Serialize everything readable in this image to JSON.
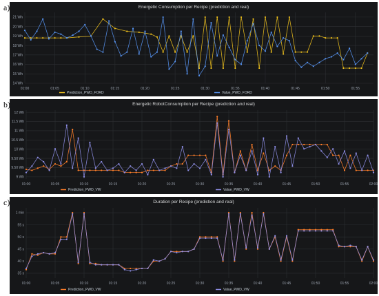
{
  "panel_labels": [
    "a)",
    "b)",
    "c)"
  ],
  "chart_data": [
    {
      "type": "line",
      "title": "Energetic Consumption per Recipe (prediction and real)",
      "xlabel": "",
      "ylabel": "",
      "x_ticks": [
        "01:00",
        "01:05",
        "01:10",
        "01:15",
        "01:20",
        "01:25",
        "01:30",
        "01:35",
        "01:40",
        "01:45",
        "01:50",
        "01:55"
      ],
      "y_ticks": [
        "14 Wh",
        "15 Wh",
        "16 Wh",
        "17 Wh",
        "18 Wh",
        "19 Wh",
        "20 Wh",
        "21 Wh"
      ],
      "ylim": [
        14,
        21.5
      ],
      "xlim_minutes": [
        0,
        58
      ],
      "grid": true,
      "legend_position": "bottom-left",
      "series": [
        {
          "name": "Prediction_PWD_FORD",
          "color": "#f2c31d",
          "x": [
            0,
            1,
            2,
            3,
            4,
            5,
            6,
            7,
            9,
            11,
            13,
            15,
            17,
            19,
            21,
            22,
            23,
            24,
            25,
            26,
            27,
            28,
            29,
            30,
            31,
            32,
            33,
            34,
            35,
            36,
            37,
            38,
            39,
            40,
            41,
            42,
            43,
            44,
            45,
            46,
            47,
            48,
            49,
            50,
            51,
            52,
            53,
            54,
            55,
            56,
            57
          ],
          "y": [
            18.8,
            18.8,
            18.8,
            18.8,
            18.8,
            18.8,
            18.8,
            18.8,
            18.9,
            19,
            20.8,
            19.8,
            19.5,
            19.4,
            19.2,
            18.9,
            17.3,
            19,
            17.3,
            19,
            17.3,
            19,
            15.6,
            21,
            15.6,
            21,
            15.6,
            21,
            15.6,
            21,
            17.3,
            20.8,
            15.6,
            21,
            17.3,
            21,
            17.1,
            21,
            17.3,
            17.3,
            17.3,
            19,
            19,
            18.8,
            18.8,
            18.8,
            15.6,
            15.6,
            15.6,
            15.6,
            17.2
          ]
        },
        {
          "name": "Value_PWD_FORD",
          "color": "#5794f2",
          "x": [
            0,
            1,
            2,
            3,
            4,
            5,
            6,
            7,
            8,
            9,
            10,
            11,
            12,
            13,
            14,
            15,
            16,
            17,
            18,
            19,
            20,
            21,
            22,
            23,
            24,
            25,
            26,
            27,
            28,
            29,
            30,
            31,
            32,
            33,
            34,
            35,
            36,
            37,
            38,
            39,
            40,
            41,
            42,
            43,
            44,
            45,
            46,
            47,
            48,
            49,
            50,
            51,
            52,
            53,
            54,
            55,
            56,
            57
          ],
          "y": [
            19.6,
            18.6,
            19.5,
            20.8,
            18.7,
            19.4,
            19.2,
            18.8,
            19.1,
            19.5,
            20.2,
            19,
            17.6,
            17.3,
            20.6,
            18.4,
            16.9,
            17.3,
            19.8,
            17.1,
            19.5,
            16.8,
            17.3,
            21,
            15.5,
            16.3,
            19.5,
            15,
            20.8,
            14.8,
            15.8,
            20.4,
            16.9,
            19.1,
            17.8,
            16.5,
            16,
            18.5,
            20.3,
            18,
            17.4,
            19.4,
            17.9,
            18.8,
            18.5,
            16.4,
            15.7,
            16.2,
            15.8,
            16.2,
            16.6,
            16.8,
            17.2,
            16.5,
            17.7,
            16,
            16.6,
            17.2
          ]
        }
      ]
    },
    {
      "type": "line",
      "title": "Energetic RobotConsumption per Recipe (prediction and real)",
      "xlabel": "",
      "ylabel": "",
      "x_ticks": [
        "01:00",
        "01:05",
        "01:10",
        "01:15",
        "01:20",
        "01:25",
        "01:30",
        "01:35",
        "01:40",
        "01:45",
        "01:50",
        "01:55",
        "02:00"
      ],
      "y_ticks": [
        "9 Wh",
        "9.50 Wh",
        "9.50 Wh",
        "10 Wh",
        "10.5 Wh",
        "11 Wh",
        "11.5 Wh",
        "12 Wh"
      ],
      "ylim": [
        8.9,
        12.1
      ],
      "xlim_minutes": [
        0,
        60
      ],
      "grid": true,
      "legend_position": "bottom-left",
      "series": [
        {
          "name": "Prediction_PWD_VW",
          "color": "#ff7f2a",
          "x": [
            0,
            1,
            2,
            3,
            4,
            5,
            6,
            7,
            8,
            9,
            10,
            11,
            12,
            13,
            14,
            15,
            16,
            17,
            18,
            19,
            20,
            21,
            22,
            23,
            24,
            25,
            26,
            27,
            28,
            29,
            30,
            31,
            32,
            33,
            34,
            35,
            36,
            37,
            38,
            39,
            40,
            41,
            42,
            43,
            44,
            45,
            46,
            47,
            48,
            49,
            50,
            51,
            52,
            53,
            54,
            55,
            56,
            57,
            58,
            59,
            60
          ],
          "y": [
            9.35,
            9.3,
            9.4,
            9.5,
            9.35,
            9.6,
            9.5,
            9.7,
            11.2,
            9.3,
            9.3,
            9.3,
            9.3,
            9.3,
            9.3,
            9.3,
            9.3,
            9.2,
            9.2,
            9.2,
            9.2,
            9.3,
            9.3,
            9.3,
            9.3,
            9.5,
            9.6,
            9.6,
            10,
            10,
            10,
            10,
            9.2,
            11.8,
            9.1,
            11.6,
            9.2,
            10.2,
            9.3,
            10.5,
            9.3,
            10.1,
            9.3,
            9.5,
            9.3,
            10,
            10.5,
            10.5,
            10.5,
            10.5,
            10.5,
            10.5,
            10.5,
            10,
            10,
            9.3,
            10,
            9.3,
            9.3,
            9.3,
            9.3
          ]
        },
        {
          "name": "Value_PWD_VW",
          "color": "#8f8fe8",
          "x": [
            0,
            1,
            2,
            3,
            4,
            5,
            6,
            7,
            8,
            9,
            10,
            11,
            12,
            13,
            14,
            15,
            16,
            17,
            18,
            19,
            20,
            21,
            22,
            23,
            24,
            25,
            26,
            27,
            28,
            29,
            30,
            31,
            32,
            33,
            34,
            35,
            36,
            37,
            38,
            39,
            40,
            41,
            42,
            43,
            44,
            45,
            46,
            47,
            48,
            49,
            50,
            51,
            52,
            53,
            54,
            55,
            56,
            57,
            58,
            59,
            60
          ],
          "y": [
            9.2,
            9.5,
            9.9,
            9.7,
            9.3,
            10.3,
            9.6,
            11.4,
            9.4,
            10.8,
            9,
            10.6,
            9.4,
            9.7,
            9.3,
            9.4,
            9.6,
            9.2,
            9.5,
            9.3,
            9.6,
            9.1,
            9.8,
            9.3,
            9.4,
            9.5,
            9.4,
            10.4,
            9.3,
            9.6,
            9.4,
            9.8,
            9.1,
            11.5,
            9,
            11.2,
            9.2,
            10,
            9.3,
            10.2,
            9.1,
            10.8,
            9,
            10.4,
            9.2,
            10.9,
            9.5,
            10.8,
            10.3,
            10.4,
            10.5,
            10.2,
            9.9,
            10.3,
            9.6,
            10.2,
            9.4,
            10.1,
            9.3,
            10,
            9.2
          ]
        }
      ]
    },
    {
      "type": "line",
      "title": "Duration per Recipe (prediction and real)",
      "xlabel": "",
      "ylabel": "",
      "x_ticks": [
        "01:00",
        "01:05",
        "01:10",
        "01:15",
        "01:20",
        "01:25",
        "01:30",
        "01:35",
        "01:40",
        "01:45",
        "01:50",
        "01:55",
        "02:00"
      ],
      "y_ticks": [
        "35 s",
        "40 s",
        "45 s",
        "50 s",
        "55 s",
        "1 min"
      ],
      "ylim": [
        33,
        62
      ],
      "xlim_minutes": [
        0,
        60
      ],
      "grid": true,
      "legend_position": "bottom-left",
      "series": [
        {
          "name": "Prediction_PWD_VW",
          "color": "#ff7f2a",
          "x": [
            0,
            1,
            2,
            3,
            4,
            5,
            6,
            7,
            8,
            9,
            10,
            11,
            12,
            13,
            14,
            15,
            16,
            17,
            18,
            19,
            20,
            21,
            22,
            23,
            24,
            25,
            26,
            27,
            28,
            29,
            30,
            31,
            32,
            33,
            34,
            35,
            36,
            37,
            38,
            39,
            40,
            41,
            42,
            43,
            44,
            45,
            46,
            47,
            48,
            49,
            50,
            51,
            52,
            53,
            54,
            55,
            56,
            57,
            58,
            59,
            60
          ],
          "y": [
            36.5,
            43,
            42.5,
            43.5,
            43,
            43,
            50,
            50,
            60,
            39,
            60,
            39,
            39,
            38.5,
            38.5,
            38.5,
            38.5,
            37,
            37,
            37,
            37,
            37,
            40,
            40,
            41,
            44,
            44,
            44,
            44,
            45,
            50,
            50,
            50,
            50,
            40,
            60,
            40,
            60,
            45,
            60,
            45,
            60,
            45,
            50,
            40,
            50,
            40,
            53,
            53,
            53,
            53,
            53,
            53,
            53,
            46,
            46,
            46,
            46,
            40,
            46,
            40
          ]
        },
        {
          "name": "Value_PWD_VW",
          "color": "#8f8fe8",
          "x": [
            0,
            1,
            2,
            3,
            4,
            5,
            6,
            7,
            8,
            9,
            10,
            11,
            12,
            13,
            14,
            15,
            16,
            17,
            18,
            19,
            20,
            21,
            22,
            23,
            24,
            25,
            26,
            27,
            28,
            29,
            30,
            31,
            32,
            33,
            34,
            35,
            36,
            37,
            38,
            39,
            40,
            41,
            42,
            43,
            44,
            45,
            46,
            47,
            48,
            49,
            50,
            51,
            52,
            53,
            54,
            55,
            56,
            57,
            58,
            59,
            60
          ],
          "y": [
            37,
            42,
            43,
            43.5,
            43,
            43.5,
            49,
            49,
            59.5,
            39.5,
            59.5,
            39.5,
            38.5,
            38.5,
            38.5,
            38.5,
            38.5,
            36.5,
            36,
            36.5,
            37,
            37,
            40.5,
            40,
            41,
            44,
            43.5,
            44,
            44,
            45,
            49.5,
            49.5,
            49.5,
            49.5,
            40.5,
            59.5,
            40.5,
            59.5,
            45.5,
            59,
            45.5,
            59.5,
            45,
            50.5,
            40.5,
            50.5,
            40.5,
            52.5,
            52.5,
            52.5,
            52.5,
            52.5,
            52.5,
            52.5,
            46.5,
            46,
            46.5,
            46,
            40.5,
            46,
            40.5
          ]
        }
      ]
    }
  ]
}
